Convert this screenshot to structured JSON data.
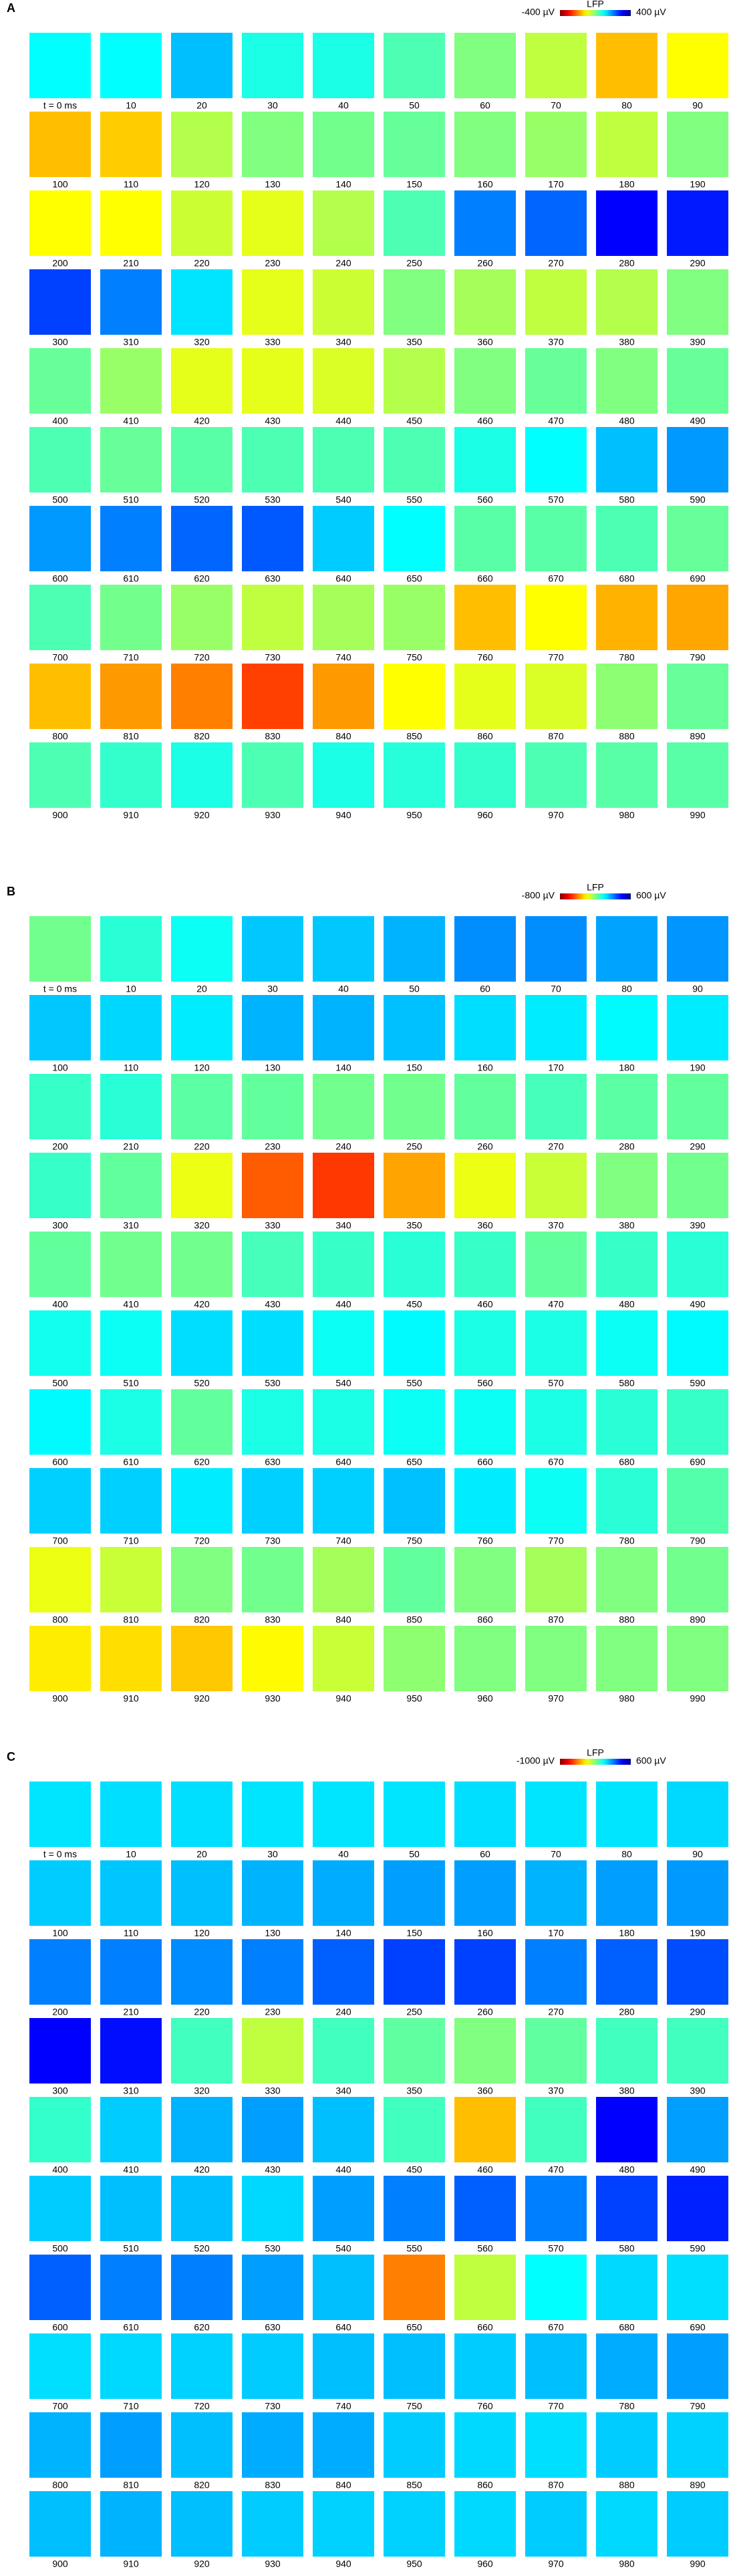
{
  "chart_data": [
    {
      "type": "heatmap-grid",
      "label": "A",
      "title": "LFP",
      "colormap": "jet_r",
      "clim": [
        {
          "value": -400,
          "label": "-400 µV"
        },
        {
          "value": 400,
          "label": "400 µV"
        }
      ],
      "categories": [
        "t = 0 ms",
        "10",
        "20",
        "30",
        "40",
        "50",
        "60",
        "70",
        "80",
        "90",
        "100",
        "110",
        "120",
        "130",
        "140",
        "150",
        "160",
        "170",
        "180",
        "190",
        "200",
        "210",
        "220",
        "230",
        "240",
        "250",
        "260",
        "270",
        "280",
        "290",
        "300",
        "310",
        "320",
        "330",
        "340",
        "350",
        "360",
        "370",
        "380",
        "390",
        "400",
        "410",
        "420",
        "430",
        "440",
        "450",
        "460",
        "470",
        "480",
        "490",
        "500",
        "510",
        "520",
        "530",
        "540",
        "550",
        "560",
        "570",
        "580",
        "590",
        "600",
        "610",
        "620",
        "630",
        "640",
        "650",
        "660",
        "670",
        "680",
        "690",
        "700",
        "710",
        "720",
        "730",
        "740",
        "750",
        "760",
        "770",
        "780",
        "790",
        "800",
        "810",
        "820",
        "830",
        "840",
        "850",
        "860",
        "870",
        "880",
        "890",
        "900",
        "910",
        "920",
        "930",
        "940",
        "950",
        "960",
        "970",
        "980",
        "990"
      ],
      "values": [
        100,
        100,
        150,
        80,
        80,
        40,
        0,
        -50,
        -150,
        -100,
        -150,
        -140,
        -40,
        0,
        10,
        20,
        0,
        -20,
        -50,
        0,
        -100,
        -100,
        -60,
        -80,
        -40,
        40,
        200,
        220,
        300,
        280,
        250,
        200,
        120,
        -80,
        -60,
        0,
        -30,
        -50,
        -40,
        0,
        20,
        -20,
        -80,
        -80,
        -70,
        -40,
        0,
        20,
        0,
        20,
        40,
        20,
        30,
        40,
        40,
        40,
        80,
        100,
        150,
        180,
        180,
        200,
        220,
        230,
        140,
        100,
        30,
        30,
        40,
        20,
        40,
        10,
        -20,
        -50,
        -30,
        -20,
        -150,
        -100,
        -160,
        -170,
        -150,
        -180,
        -200,
        -250,
        -180,
        -100,
        -80,
        -70,
        -10,
        20,
        40,
        60,
        80,
        40,
        80,
        70,
        60,
        40,
        30,
        30
      ]
    },
    {
      "type": "heatmap-grid",
      "label": "B",
      "title": "LFP",
      "colormap": "jet_r",
      "clim": [
        {
          "value": -800,
          "label": "-800 µV"
        },
        {
          "value": 600,
          "label": "600 µV"
        }
      ],
      "categories": [
        "t = 0 ms",
        "10",
        "20",
        "30",
        "40",
        "50",
        "60",
        "70",
        "80",
        "90",
        "100",
        "110",
        "120",
        "130",
        "140",
        "150",
        "160",
        "170",
        "180",
        "190",
        "200",
        "210",
        "220",
        "230",
        "240",
        "250",
        "260",
        "270",
        "280",
        "290",
        "300",
        "310",
        "320",
        "330",
        "340",
        "350",
        "360",
        "370",
        "380",
        "390",
        "400",
        "410",
        "420",
        "430",
        "440",
        "450",
        "460",
        "470",
        "480",
        "490",
        "500",
        "510",
        "520",
        "530",
        "540",
        "550",
        "560",
        "570",
        "580",
        "590",
        "600",
        "610",
        "620",
        "630",
        "640",
        "650",
        "660",
        "670",
        "680",
        "690",
        "700",
        "710",
        "720",
        "730",
        "740",
        "750",
        "760",
        "770",
        "780",
        "790",
        "800",
        "810",
        "820",
        "830",
        "840",
        "850",
        "860",
        "870",
        "880",
        "890",
        "900",
        "910",
        "920",
        "930",
        "940",
        "950",
        "960",
        "970",
        "980",
        "990"
      ],
      "values": [
        -80,
        20,
        60,
        150,
        150,
        180,
        230,
        230,
        200,
        220,
        150,
        130,
        100,
        180,
        180,
        160,
        120,
        100,
        80,
        100,
        0,
        20,
        -50,
        -60,
        -80,
        -80,
        -60,
        -20,
        -50,
        -60,
        0,
        -60,
        -250,
        -500,
        -550,
        -400,
        -250,
        -200,
        -100,
        -80,
        -60,
        -80,
        -80,
        -20,
        0,
        20,
        0,
        -60,
        0,
        20,
        50,
        60,
        120,
        120,
        60,
        80,
        40,
        40,
        60,
        80,
        80,
        40,
        -60,
        40,
        40,
        60,
        60,
        40,
        20,
        0,
        140,
        140,
        100,
        140,
        140,
        160,
        100,
        60,
        20,
        -40,
        -250,
        -200,
        -100,
        -80,
        -150,
        -60,
        -100,
        -150,
        -100,
        -80,
        -300,
        -320,
        -350,
        -280,
        -200,
        -120,
        -100,
        -100,
        -100,
        -100
      ]
    },
    {
      "type": "heatmap-grid",
      "label": "C",
      "title": "LFP",
      "colormap": "jet_r",
      "clim": [
        {
          "value": -1000,
          "label": "-1000 µV"
        },
        {
          "value": 600,
          "label": "600 µV"
        }
      ],
      "categories": [
        "t = 0 ms",
        "10",
        "20",
        "30",
        "40",
        "50",
        "60",
        "70",
        "80",
        "90",
        "100",
        "110",
        "120",
        "130",
        "140",
        "150",
        "160",
        "170",
        "180",
        "190",
        "200",
        "210",
        "220",
        "230",
        "240",
        "250",
        "260",
        "270",
        "280",
        "290",
        "300",
        "310",
        "320",
        "330",
        "340",
        "350",
        "360",
        "370",
        "380",
        "390",
        "400",
        "410",
        "420",
        "430",
        "440",
        "450",
        "460",
        "470",
        "480",
        "490",
        "500",
        "510",
        "520",
        "530",
        "540",
        "550",
        "560",
        "570",
        "580",
        "590",
        "600",
        "610",
        "620",
        "630",
        "640",
        "650",
        "660",
        "670",
        "680",
        "690",
        "700",
        "710",
        "720",
        "730",
        "740",
        "750",
        "760",
        "770",
        "780",
        "790",
        "800",
        "810",
        "820",
        "830",
        "840",
        "850",
        "860",
        "870",
        "880",
        "890",
        "900",
        "910",
        "920",
        "930",
        "940",
        "950",
        "960",
        "970",
        "980",
        "990"
      ],
      "values": [
        40,
        50,
        50,
        40,
        40,
        40,
        50,
        40,
        40,
        60,
        80,
        90,
        100,
        120,
        130,
        150,
        150,
        120,
        150,
        160,
        200,
        200,
        180,
        200,
        250,
        300,
        300,
        200,
        250,
        280,
        400,
        380,
        -100,
        -300,
        -100,
        -150,
        -200,
        -150,
        -100,
        -100,
        -80,
        80,
        120,
        150,
        100,
        -100,
        -500,
        -100,
        400,
        150,
        80,
        100,
        100,
        60,
        150,
        200,
        250,
        200,
        300,
        350,
        250,
        200,
        200,
        150,
        100,
        -600,
        -300,
        0,
        60,
        50,
        50,
        60,
        70,
        80,
        100,
        100,
        80,
        100,
        130,
        150,
        120,
        150,
        100,
        130,
        130,
        80,
        60,
        50,
        80,
        70,
        100,
        120,
        100,
        80,
        70,
        70,
        60,
        80,
        60,
        80
      ]
    }
  ]
}
